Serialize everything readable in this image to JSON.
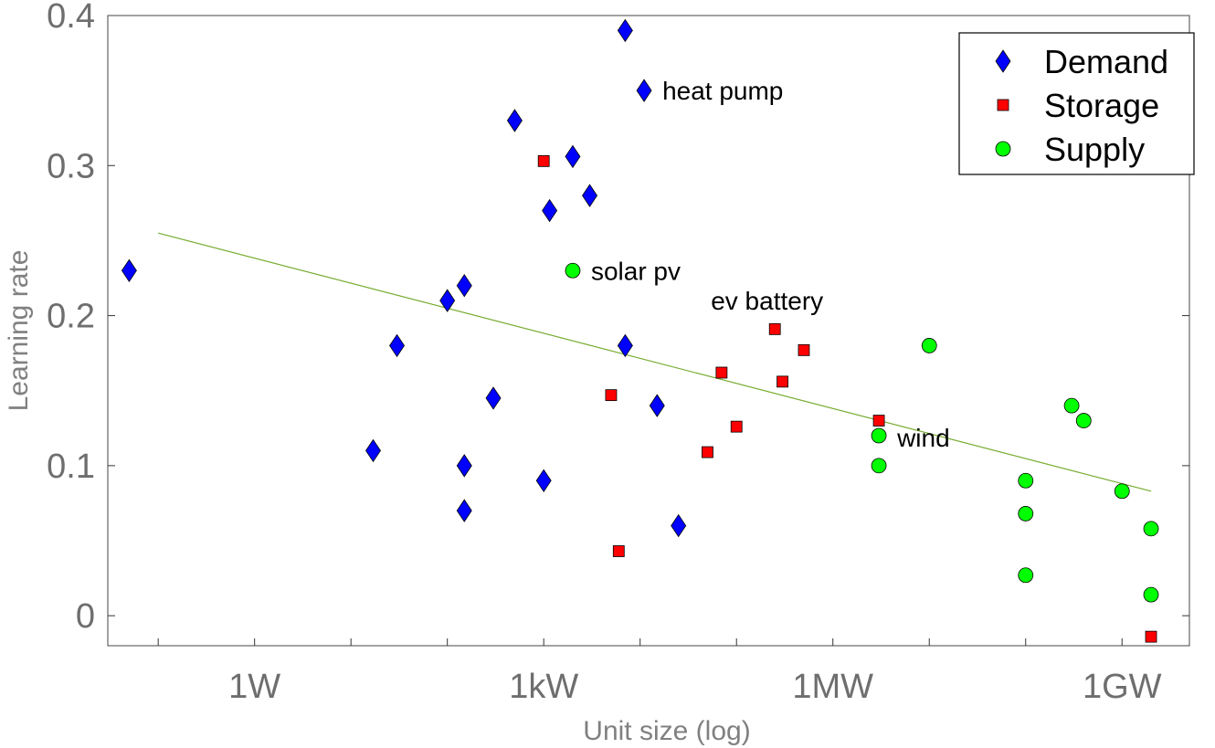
{
  "chart_data": {
    "type": "scatter",
    "xlabel": "Unit size (log)",
    "ylabel": "Learning rate",
    "x_scale": "log10",
    "x_unit": "W",
    "xlim": [
      0.03,
      5000000000
    ],
    "ylim": [
      -0.02,
      0.4
    ],
    "grid": true,
    "x_ticks": [
      {
        "value": 1,
        "label": "1W"
      },
      {
        "value": 1000,
        "label": "1kW"
      },
      {
        "value": 1000000,
        "label": "1MW"
      },
      {
        "value": 1000000000,
        "label": "1GW"
      }
    ],
    "x_minor_ticks": [
      0.1,
      10,
      100,
      10000,
      100000,
      10000000,
      100000000
    ],
    "y_ticks": [
      {
        "value": 0,
        "label": "0"
      },
      {
        "value": 0.1,
        "label": "0.1"
      },
      {
        "value": 0.2,
        "label": "0.2"
      },
      {
        "value": 0.3,
        "label": "0.3"
      },
      {
        "value": 0.4,
        "label": "0.4"
      }
    ],
    "legend_position": "top-right",
    "series": [
      {
        "name": "Demand",
        "marker": "diamond",
        "color": "#0000ff",
        "points": [
          {
            "x": 0.05,
            "y": 0.23
          },
          {
            "x": 17,
            "y": 0.11
          },
          {
            "x": 30,
            "y": 0.18
          },
          {
            "x": 100,
            "y": 0.21
          },
          {
            "x": 150,
            "y": 0.22
          },
          {
            "x": 150,
            "y": 0.1
          },
          {
            "x": 150,
            "y": 0.07
          },
          {
            "x": 300,
            "y": 0.145
          },
          {
            "x": 1000,
            "y": 0.09
          },
          {
            "x": 500,
            "y": 0.33
          },
          {
            "x": 1150,
            "y": 0.27
          },
          {
            "x": 2000,
            "y": 0.306
          },
          {
            "x": 3000,
            "y": 0.28
          },
          {
            "x": 7000,
            "y": 0.39
          },
          {
            "x": 7000,
            "y": 0.18
          },
          {
            "x": 11000,
            "y": 0.35
          },
          {
            "x": 15000,
            "y": 0.14
          },
          {
            "x": 25000,
            "y": 0.06
          }
        ]
      },
      {
        "name": "Storage",
        "marker": "square",
        "color": "#ff0000",
        "points": [
          {
            "x": 1000,
            "y": 0.303
          },
          {
            "x": 6000,
            "y": 0.043
          },
          {
            "x": 5000,
            "y": 0.147
          },
          {
            "x": 50000,
            "y": 0.109
          },
          {
            "x": 70000,
            "y": 0.162
          },
          {
            "x": 100000,
            "y": 0.126
          },
          {
            "x": 250000,
            "y": 0.191
          },
          {
            "x": 300000,
            "y": 0.156
          },
          {
            "x": 500000,
            "y": 0.177
          },
          {
            "x": 3000000,
            "y": 0.13
          },
          {
            "x": 2000000000,
            "y": -0.014
          }
        ]
      },
      {
        "name": "Supply",
        "marker": "circle",
        "color": "#00ff00",
        "points": [
          {
            "x": 2000,
            "y": 0.23
          },
          {
            "x": 3000000,
            "y": 0.12
          },
          {
            "x": 3000000,
            "y": 0.1
          },
          {
            "x": 10000000,
            "y": 0.18
          },
          {
            "x": 100000000,
            "y": 0.09
          },
          {
            "x": 100000000,
            "y": 0.068
          },
          {
            "x": 100000000,
            "y": 0.027
          },
          {
            "x": 300000000,
            "y": 0.14
          },
          {
            "x": 400000000,
            "y": 0.13
          },
          {
            "x": 1000000000,
            "y": 0.083
          },
          {
            "x": 2000000000,
            "y": 0.058
          },
          {
            "x": 2000000000,
            "y": 0.014
          }
        ]
      }
    ],
    "trendline": {
      "color": "#77ac30",
      "points": [
        {
          "x": 0.1,
          "y": 0.255
        },
        {
          "x": 2000000000,
          "y": 0.083
        }
      ]
    },
    "annotations": [
      {
        "text": "heat pump",
        "x": 11000,
        "y": 0.35
      },
      {
        "text": "solar pv",
        "x": 2000,
        "y": 0.23
      },
      {
        "text": "ev battery",
        "x": 250000,
        "y": 0.21
      },
      {
        "text": "wind",
        "x": 3000000,
        "y": 0.12
      }
    ]
  }
}
